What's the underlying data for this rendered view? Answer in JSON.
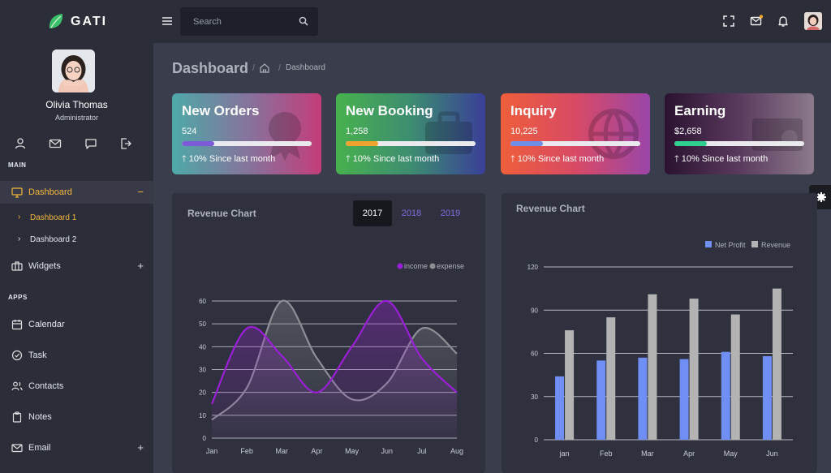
{
  "app": {
    "name": "GATI"
  },
  "search": {
    "placeholder": "Search"
  },
  "profile": {
    "name": "Olivia Thomas",
    "role": "Administrator"
  },
  "sidebar": {
    "main_label": "MAIN",
    "apps_label": "APPS",
    "dashboard": {
      "label": "Dashboard",
      "toggle": "−"
    },
    "sub_items": [
      {
        "label": "Dashboard 1",
        "chevron": "›"
      },
      {
        "label": "Dashboard 2",
        "chevron": "›"
      }
    ],
    "widgets": {
      "label": "Widgets",
      "toggle": "+"
    },
    "apps": [
      {
        "label": "Calendar"
      },
      {
        "label": "Task"
      },
      {
        "label": "Contacts"
      },
      {
        "label": "Notes"
      },
      {
        "label": "Email",
        "toggle": "+"
      }
    ]
  },
  "page": {
    "title": "Dashboard",
    "breadcrumb": "Dashboard",
    "sep": "/"
  },
  "cards": [
    {
      "title": "New Orders",
      "value": "524",
      "progress": 0.25,
      "footer": "10% Since last month",
      "fill": "#7b5cd6"
    },
    {
      "title": "New Booking",
      "value": "1,258",
      "progress": 0.25,
      "footer": "10% Since last month",
      "fill": "#f0a22e"
    },
    {
      "title": "Inquiry",
      "value": "10,225",
      "progress": 0.25,
      "footer": "10% Since last month",
      "fill": "#6f8ee8"
    },
    {
      "title": "Earning",
      "value": "$2,658",
      "progress": 0.25,
      "footer": "10% Since last month",
      "fill": "#2fcf8f"
    }
  ],
  "colors": {
    "accent": "#f2b63a",
    "income": "#9b1fd6",
    "expense": "#8d8f96",
    "net_profit": "#6f8ff5",
    "revenue": "#b3b3b3"
  },
  "chart_data": [
    {
      "type": "line",
      "title": "Revenue Chart",
      "years": [
        "2017",
        "2018",
        "2019"
      ],
      "selected_year": "2017",
      "categories": [
        "Jan",
        "Feb",
        "Mar",
        "Apr",
        "May",
        "Jun",
        "Jul",
        "Aug"
      ],
      "series": [
        {
          "name": "income",
          "values": [
            15,
            48,
            36,
            20,
            40,
            60,
            35,
            20
          ]
        },
        {
          "name": "expense",
          "values": [
            8,
            22,
            60,
            35,
            17,
            24,
            48,
            37
          ]
        }
      ],
      "ylim": [
        0,
        60
      ],
      "yticks": [
        "0",
        "10",
        "20",
        "30",
        "40",
        "50",
        "60"
      ],
      "legend": "top-right",
      "grid": true
    },
    {
      "type": "bar",
      "title": "Revenue Chart",
      "categories": [
        "jan",
        "Feb",
        "Mar",
        "Apr",
        "May",
        "Jun"
      ],
      "series": [
        {
          "name": "Net Profit",
          "values": [
            44,
            55,
            57,
            56,
            61,
            58
          ]
        },
        {
          "name": "Revenue",
          "values": [
            76,
            85,
            101,
            98,
            87,
            105
          ]
        }
      ],
      "ylim": [
        0,
        120
      ],
      "yticks": [
        "0",
        "30",
        "60",
        "90",
        "120"
      ],
      "legend": "top-right",
      "grid": true
    }
  ]
}
